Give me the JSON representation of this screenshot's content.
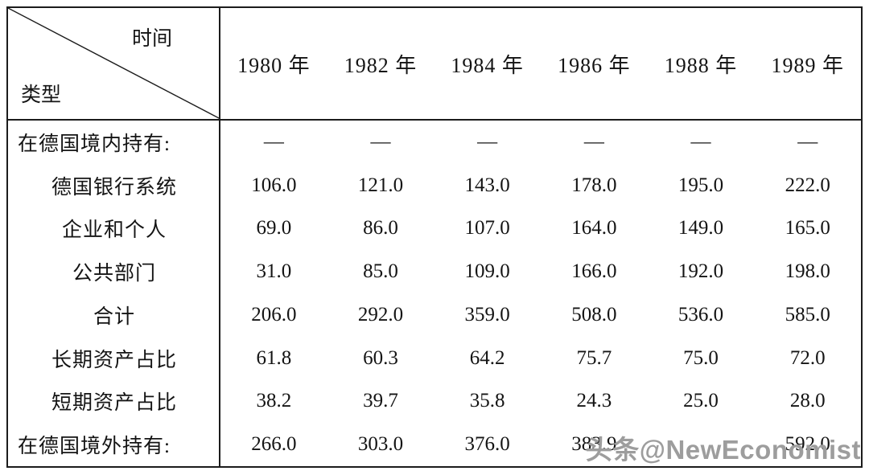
{
  "chart_data": {
    "type": "table",
    "corner_top_label": "时间",
    "corner_bottom_label": "类型",
    "columns": [
      "1980 年",
      "1982 年",
      "1984 年",
      "1986 年",
      "1988 年",
      "1989 年"
    ],
    "rows": [
      {
        "label": "在德国境内持有:",
        "section": true,
        "values": [
          "—",
          "—",
          "—",
          "—",
          "—",
          "—"
        ]
      },
      {
        "label": "德国银行系统",
        "section": false,
        "values": [
          "106.0",
          "121.0",
          "143.0",
          "178.0",
          "195.0",
          "222.0"
        ]
      },
      {
        "label": "企业和个人",
        "section": false,
        "values": [
          "69.0",
          "86.0",
          "107.0",
          "164.0",
          "149.0",
          "165.0"
        ]
      },
      {
        "label": "公共部门",
        "section": false,
        "values": [
          "31.0",
          "85.0",
          "109.0",
          "166.0",
          "192.0",
          "198.0"
        ]
      },
      {
        "label": "合计",
        "section": false,
        "values": [
          "206.0",
          "292.0",
          "359.0",
          "508.0",
          "536.0",
          "585.0"
        ]
      },
      {
        "label": "长期资产占比",
        "section": false,
        "values": [
          "61.8",
          "60.3",
          "64.2",
          "75.7",
          "75.0",
          "72.0"
        ]
      },
      {
        "label": "短期资产占比",
        "section": false,
        "values": [
          "38.2",
          "39.7",
          "35.8",
          "24.3",
          "25.0",
          "28.0"
        ]
      },
      {
        "label": "在德国境外持有:",
        "section": true,
        "values": [
          "266.0",
          "303.0",
          "376.0",
          "383.9",
          "",
          "592.0"
        ]
      }
    ]
  },
  "watermark": {
    "text": "头条@NewEconomist",
    "color": "#9d9d9d"
  },
  "line_color": "#1c1c1c"
}
